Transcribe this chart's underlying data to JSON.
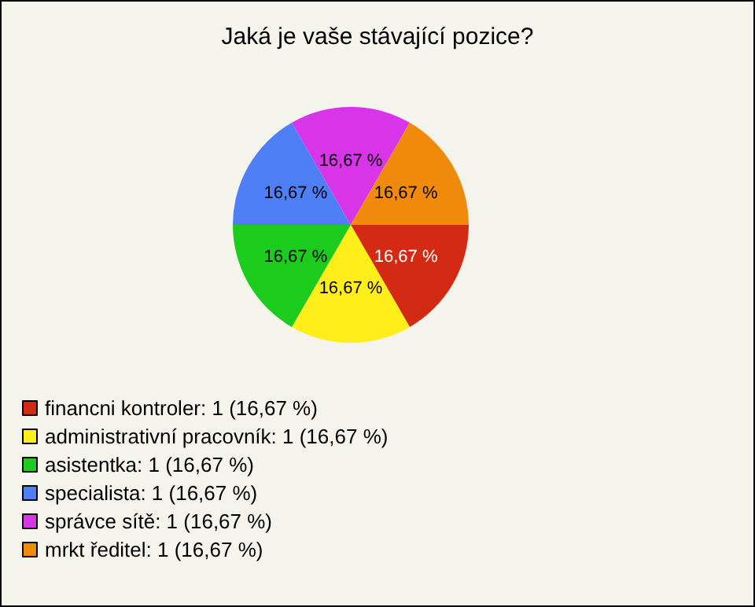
{
  "chart_data": {
    "type": "pie",
    "title": "Jaká je vaše stávající pozice?",
    "categories": [
      "financni kontroler: 1 (16,67 %)",
      "administrativní pracovník: 1 (16,67 %)",
      "asistentka: 1 (16,67 %)",
      "specialista: 1 (16,67 %)",
      "správce sítě: 1 (16,67 %)",
      "mrkt ředitel: 1 (16,67 %)"
    ],
    "values": [
      16.67,
      16.67,
      16.67,
      16.67,
      16.67,
      16.67
    ],
    "value_labels": [
      "16,67 %",
      "16,67 %",
      "16,67 %",
      "16,67 %",
      "16,67 %",
      "16,67 %"
    ],
    "colors": [
      "#d42a14",
      "#ffee1a",
      "#1ccc1c",
      "#4f7ff5",
      "#d835e8",
      "#f08a0c"
    ],
    "legend": "bottom left"
  }
}
